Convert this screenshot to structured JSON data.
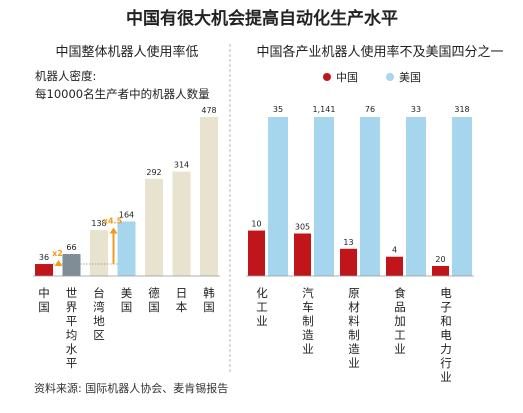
{
  "header": {
    "title": "中国有很大机会提高自动化生产水平",
    "source": "资料来源: 国际机器人协会、麦肯锡报告"
  },
  "colors": {
    "china": "#c0161b",
    "world": "#7f8d96",
    "usa": "#a6d6ee",
    "others": "#e7e3ce",
    "accent": "#f39a1e",
    "grid": "#cfcfcf",
    "text": "#222222",
    "divider": "#b8b8b8"
  },
  "chart_data": [
    {
      "type": "bar",
      "title": "中国整体机器人使用率低",
      "ylabel_line1": "机器人密度:",
      "ylabel_line2": "每10000名生产者中的机器人数量",
      "categories": [
        "中国",
        "世界平均水平",
        "台湾地区",
        "美国",
        "德国",
        "日本",
        "韩国"
      ],
      "values": [
        36,
        66,
        138,
        164,
        292,
        314,
        478
      ],
      "annotations": [
        {
          "label": "x2",
          "from": "中国",
          "to": "世界平均水平"
        },
        {
          "label": "x4.5",
          "from": "中国",
          "to": "美国"
        }
      ],
      "ylim": [
        0,
        478
      ]
    },
    {
      "type": "bar",
      "title": "中国各产业机器人使用率不及美国四分之一",
      "legend_position": "top",
      "categories": [
        "化工业",
        "汽车制造业",
        "原材料制造业",
        "食品加工业",
        "电子和电力行业"
      ],
      "series": [
        {
          "name": "中国",
          "values": [
            10,
            305,
            13,
            4,
            20
          ],
          "labels": [
            "10",
            "305",
            "13",
            "4",
            "20"
          ]
        },
        {
          "name": "美国",
          "values": [
            35,
            1141,
            76,
            33,
            318
          ],
          "labels": [
            "35",
            "1,141",
            "76",
            "33",
            "318"
          ]
        }
      ]
    }
  ]
}
